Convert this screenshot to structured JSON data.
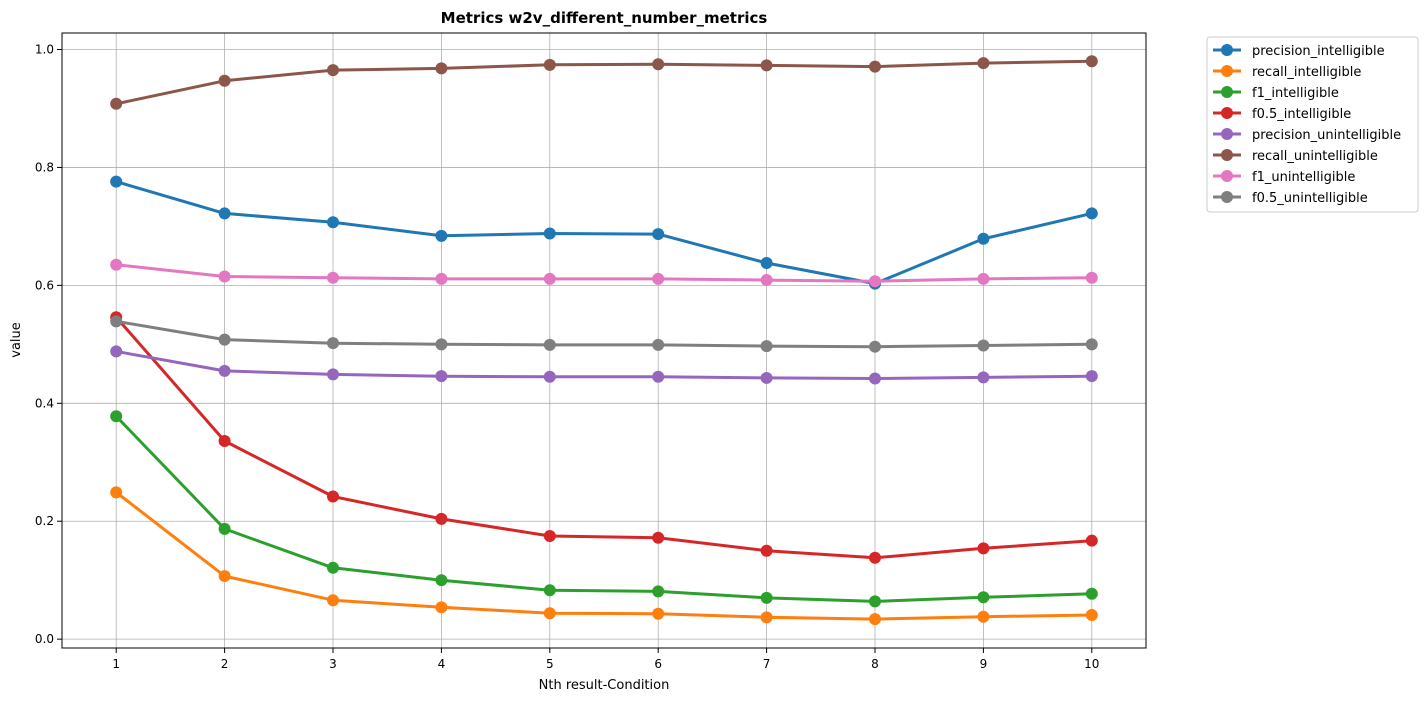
{
  "chart_data": {
    "type": "line",
    "title": "Metrics w2v_different_number_metrics",
    "xlabel": "Nth result-Condition",
    "ylabel": "value",
    "x": [
      1,
      2,
      3,
      4,
      5,
      6,
      7,
      8,
      9,
      10
    ],
    "x_ticks": [
      "1",
      "2",
      "3",
      "4",
      "5",
      "6",
      "7",
      "8",
      "9",
      "10"
    ],
    "y_ticks": [
      "0.0",
      "0.2",
      "0.4",
      "0.6",
      "0.8",
      "1.0"
    ],
    "xlim": [
      0.5,
      10.5
    ],
    "ylim": [
      -0.015,
      1.028
    ],
    "grid": true,
    "legend_position": "outside-top-right",
    "series": [
      {
        "name": "precision_intelligible",
        "color": "#1f77b4",
        "values": [
          0.776,
          0.722,
          0.707,
          0.684,
          0.688,
          0.687,
          0.638,
          0.603,
          0.679,
          0.722
        ]
      },
      {
        "name": "recall_intelligible",
        "color": "#ff7f0e",
        "values": [
          0.249,
          0.107,
          0.066,
          0.054,
          0.044,
          0.043,
          0.037,
          0.034,
          0.038,
          0.041
        ]
      },
      {
        "name": "f1_intelligible",
        "color": "#2ca02c",
        "values": [
          0.378,
          0.187,
          0.121,
          0.1,
          0.083,
          0.081,
          0.07,
          0.064,
          0.071,
          0.077
        ]
      },
      {
        "name": "f0.5_intelligible",
        "color": "#d62728",
        "values": [
          0.546,
          0.336,
          0.242,
          0.204,
          0.175,
          0.172,
          0.15,
          0.138,
          0.154,
          0.167
        ]
      },
      {
        "name": "precision_unintelligible",
        "color": "#9467bd",
        "values": [
          0.488,
          0.455,
          0.449,
          0.446,
          0.445,
          0.445,
          0.443,
          0.442,
          0.444,
          0.446
        ]
      },
      {
        "name": "recall_unintelligible",
        "color": "#8c564b",
        "values": [
          0.908,
          0.947,
          0.965,
          0.968,
          0.974,
          0.975,
          0.973,
          0.971,
          0.977,
          0.98
        ]
      },
      {
        "name": "f1_unintelligible",
        "color": "#e377c2",
        "values": [
          0.635,
          0.615,
          0.613,
          0.611,
          0.611,
          0.611,
          0.609,
          0.607,
          0.611,
          0.613
        ]
      },
      {
        "name": "f0.5_unintelligible",
        "color": "#7f7f7f",
        "values": [
          0.539,
          0.508,
          0.502,
          0.5,
          0.499,
          0.499,
          0.497,
          0.496,
          0.498,
          0.5
        ]
      }
    ]
  }
}
